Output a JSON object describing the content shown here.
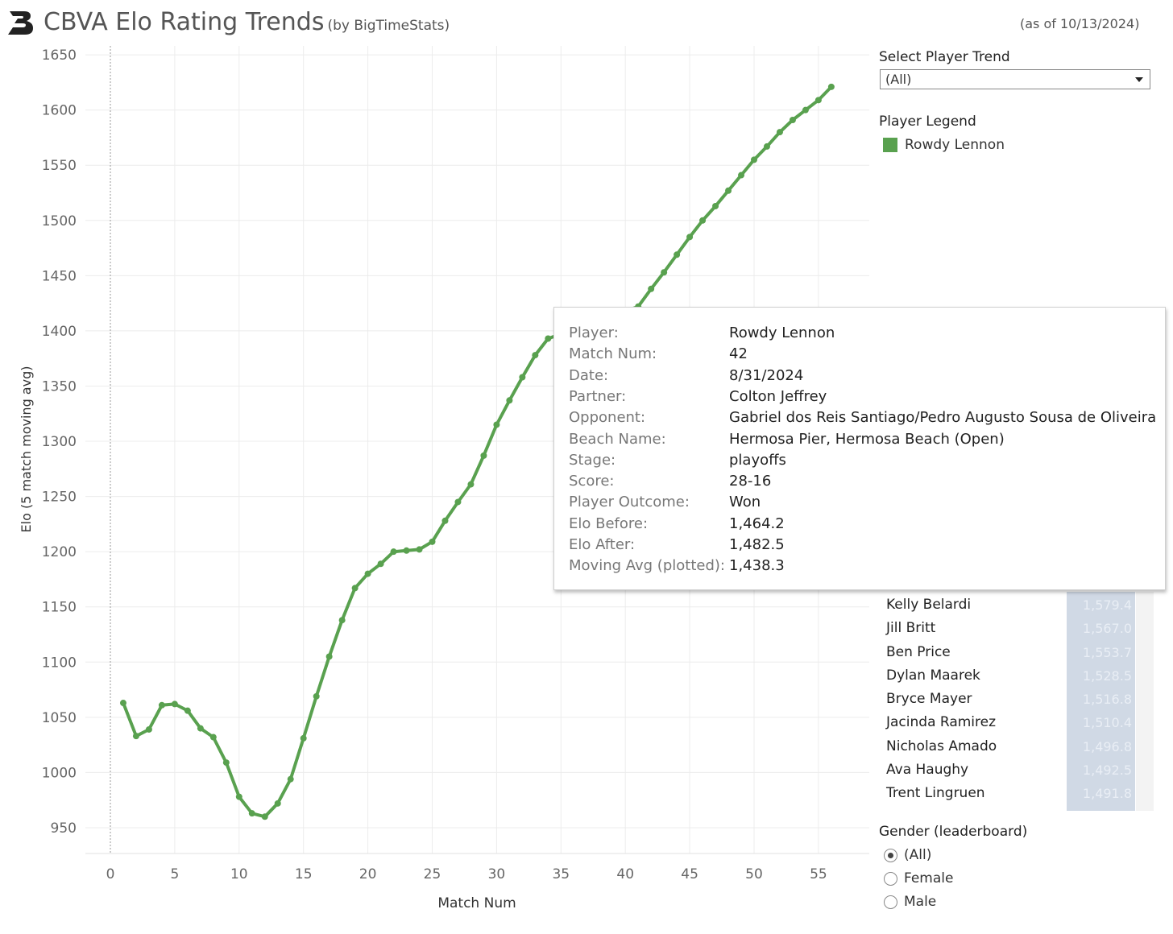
{
  "header": {
    "title": "CBVA Elo Rating Trends",
    "subtitle": "(by BigTimeStats)",
    "as_of": "(as of 10/13/2024)"
  },
  "controls": {
    "select_label": "Select Player Trend",
    "select_value": "(All)",
    "legend_label": "Player Legend",
    "legend_item": "Rowdy Lennon",
    "legend_color": "#59a14f"
  },
  "leaderboard": [
    {
      "name": "Kelly Belardi",
      "value": "1,579.4"
    },
    {
      "name": "Jill Britt",
      "value": "1,567.0"
    },
    {
      "name": "Ben Price",
      "value": "1,553.7"
    },
    {
      "name": "Dylan Maarek",
      "value": "1,528.5"
    },
    {
      "name": "Bryce Mayer",
      "value": "1,516.8"
    },
    {
      "name": "Jacinda Ramirez",
      "value": "1,510.4"
    },
    {
      "name": "Nicholas Amado",
      "value": "1,496.8"
    },
    {
      "name": "Ava Haughy",
      "value": "1,492.5"
    },
    {
      "name": "Trent Lingruen",
      "value": "1,491.8"
    }
  ],
  "gender_filter": {
    "label": "Gender (leaderboard)",
    "options": [
      "(All)",
      "Female",
      "Male"
    ],
    "selected": "(All)"
  },
  "tooltip": [
    {
      "key": "Player:",
      "value": "Rowdy Lennon"
    },
    {
      "key": "Match Num:",
      "value": "42"
    },
    {
      "key": "Date:",
      "value": "8/31/2024"
    },
    {
      "key": "Partner:",
      "value": "Colton Jeffrey"
    },
    {
      "key": "Opponent:",
      "value": "Gabriel dos Reis Santiago/Pedro Augusto Sousa de Oliveira"
    },
    {
      "key": "Beach Name:",
      "value": "Hermosa Pier, Hermosa Beach (Open)"
    },
    {
      "key": "Stage:",
      "value": "playoffs"
    },
    {
      "key": "Score:",
      "value": "28-16"
    },
    {
      "key": "Player Outcome:",
      "value": "Won"
    },
    {
      "key": "Elo Before:",
      "value": "1,464.2"
    },
    {
      "key": "Elo After:",
      "value": "1,482.5"
    },
    {
      "key": "Moving Avg (plotted):",
      "value": "1,438.3"
    }
  ],
  "chart_data": {
    "type": "line",
    "xlabel": "Match Num",
    "ylabel": "Elo (5 match moving avg)",
    "xlim": [
      0,
      57
    ],
    "ylim": [
      930,
      1655
    ],
    "x_ticks": [
      0,
      5,
      10,
      15,
      20,
      25,
      30,
      35,
      40,
      45,
      50,
      55
    ],
    "y_ticks": [
      950,
      1000,
      1050,
      1100,
      1150,
      1200,
      1250,
      1300,
      1350,
      1400,
      1450,
      1500,
      1550,
      1600,
      1650
    ],
    "series": [
      {
        "name": "Rowdy Lennon",
        "color": "#59a14f",
        "x": [
          1,
          2,
          3,
          4,
          5,
          6,
          7,
          8,
          9,
          10,
          11,
          12,
          13,
          14,
          15,
          16,
          17,
          18,
          19,
          20,
          21,
          22,
          23,
          24,
          25,
          26,
          27,
          28,
          29,
          30,
          31,
          32,
          33,
          34,
          41,
          42,
          43,
          44,
          45,
          46,
          47,
          48,
          49,
          50,
          51,
          52,
          53,
          54,
          55,
          56
        ],
        "y": [
          1063,
          1033,
          1039,
          1061,
          1062,
          1056,
          1040,
          1032,
          1009,
          978,
          963,
          960,
          972,
          994,
          1031,
          1069,
          1105,
          1138,
          1167,
          1180,
          1189,
          1200,
          1201,
          1202,
          1209,
          1228,
          1245,
          1261,
          1287,
          1315,
          1337,
          1358,
          1378,
          1393,
          1422,
          1438,
          1453,
          1469,
          1485,
          1500,
          1513,
          1527,
          1541,
          1555,
          1567,
          1580,
          1591,
          1600,
          1609,
          1621
        ]
      }
    ]
  }
}
